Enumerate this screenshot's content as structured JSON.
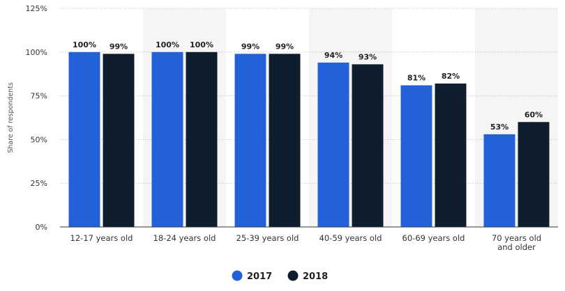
{
  "chart_data": {
    "type": "bar",
    "categories": [
      "12-17 years old",
      "18-24 years old",
      "25-39 years old",
      "40-59 years old",
      "60-69 years old",
      "70 years old and older"
    ],
    "category_lines": [
      [
        "12-17 years old"
      ],
      [
        "18-24 years old"
      ],
      [
        "25-39 years old"
      ],
      [
        "40-59 years old"
      ],
      [
        "60-69 years old"
      ],
      [
        "70 years old",
        "and older"
      ]
    ],
    "series": [
      {
        "name": "2017",
        "values": [
          100,
          100,
          99,
          94,
          81,
          53
        ],
        "labels": [
          "100%",
          "100%",
          "99%",
          "94%",
          "81%",
          "53%"
        ]
      },
      {
        "name": "2018",
        "values": [
          99,
          100,
          99,
          93,
          82,
          60
        ],
        "labels": [
          "99%",
          "100%",
          "99%",
          "93%",
          "82%",
          "60%"
        ]
      }
    ],
    "ylabel": "Share of respondents",
    "ylim": [
      0,
      125
    ],
    "yticks": [
      0,
      25,
      50,
      75,
      100,
      125
    ],
    "ytick_labels": [
      "0%",
      "25%",
      "50%",
      "75%",
      "100%",
      "125%"
    ],
    "grid": true,
    "legend_position": "bottom-center",
    "colors": {
      "2017": "#2361d8",
      "2018": "#0f1e2e",
      "band": "#f5f5f5",
      "grid": "#c8c8c8",
      "axis": "#333333"
    }
  }
}
